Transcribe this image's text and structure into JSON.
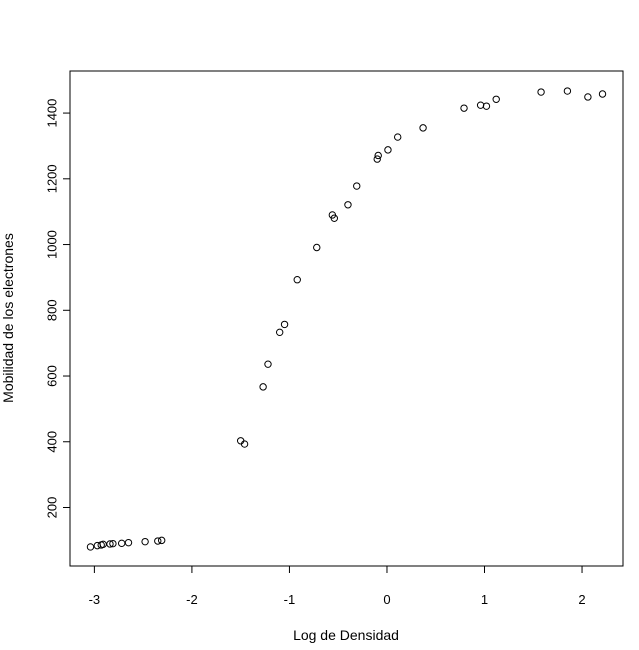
{
  "chart_data": {
    "type": "scatter",
    "title": "",
    "xlabel": "Log de Densidad",
    "ylabel": "Mobilidad de los electrones",
    "xlim": [
      -3.25,
      2.42
    ],
    "ylim": [
      22,
      1528
    ],
    "xticks": [
      -3,
      -2,
      -1,
      0,
      1,
      2
    ],
    "yticks": [
      200,
      400,
      600,
      800,
      1000,
      1200,
      1400
    ],
    "grid": false,
    "marker": "open-circle",
    "points": [
      {
        "x": -3.04,
        "y": 80
      },
      {
        "x": -2.97,
        "y": 84
      },
      {
        "x": -2.93,
        "y": 86
      },
      {
        "x": -2.91,
        "y": 88
      },
      {
        "x": -2.84,
        "y": 89
      },
      {
        "x": -2.81,
        "y": 90
      },
      {
        "x": -2.72,
        "y": 91
      },
      {
        "x": -2.65,
        "y": 93
      },
      {
        "x": -2.48,
        "y": 96
      },
      {
        "x": -2.35,
        "y": 98
      },
      {
        "x": -2.31,
        "y": 100
      },
      {
        "x": -1.5,
        "y": 403
      },
      {
        "x": -1.46,
        "y": 393
      },
      {
        "x": -1.27,
        "y": 567
      },
      {
        "x": -1.22,
        "y": 636
      },
      {
        "x": -1.1,
        "y": 733
      },
      {
        "x": -1.05,
        "y": 757
      },
      {
        "x": -0.92,
        "y": 893
      },
      {
        "x": -0.72,
        "y": 991
      },
      {
        "x": -0.56,
        "y": 1090
      },
      {
        "x": -0.54,
        "y": 1080
      },
      {
        "x": -0.4,
        "y": 1121
      },
      {
        "x": -0.31,
        "y": 1178
      },
      {
        "x": -0.1,
        "y": 1260
      },
      {
        "x": -0.09,
        "y": 1271
      },
      {
        "x": 0.01,
        "y": 1288
      },
      {
        "x": 0.11,
        "y": 1327
      },
      {
        "x": 0.37,
        "y": 1355
      },
      {
        "x": 0.79,
        "y": 1415
      },
      {
        "x": 0.96,
        "y": 1424
      },
      {
        "x": 1.02,
        "y": 1421
      },
      {
        "x": 1.12,
        "y": 1442
      },
      {
        "x": 1.58,
        "y": 1464
      },
      {
        "x": 1.85,
        "y": 1467
      },
      {
        "x": 2.06,
        "y": 1449
      },
      {
        "x": 2.21,
        "y": 1458
      }
    ]
  },
  "labels": {
    "xlabel": "Log de Densidad",
    "ylabel": "Mobilidad de los electrones"
  }
}
